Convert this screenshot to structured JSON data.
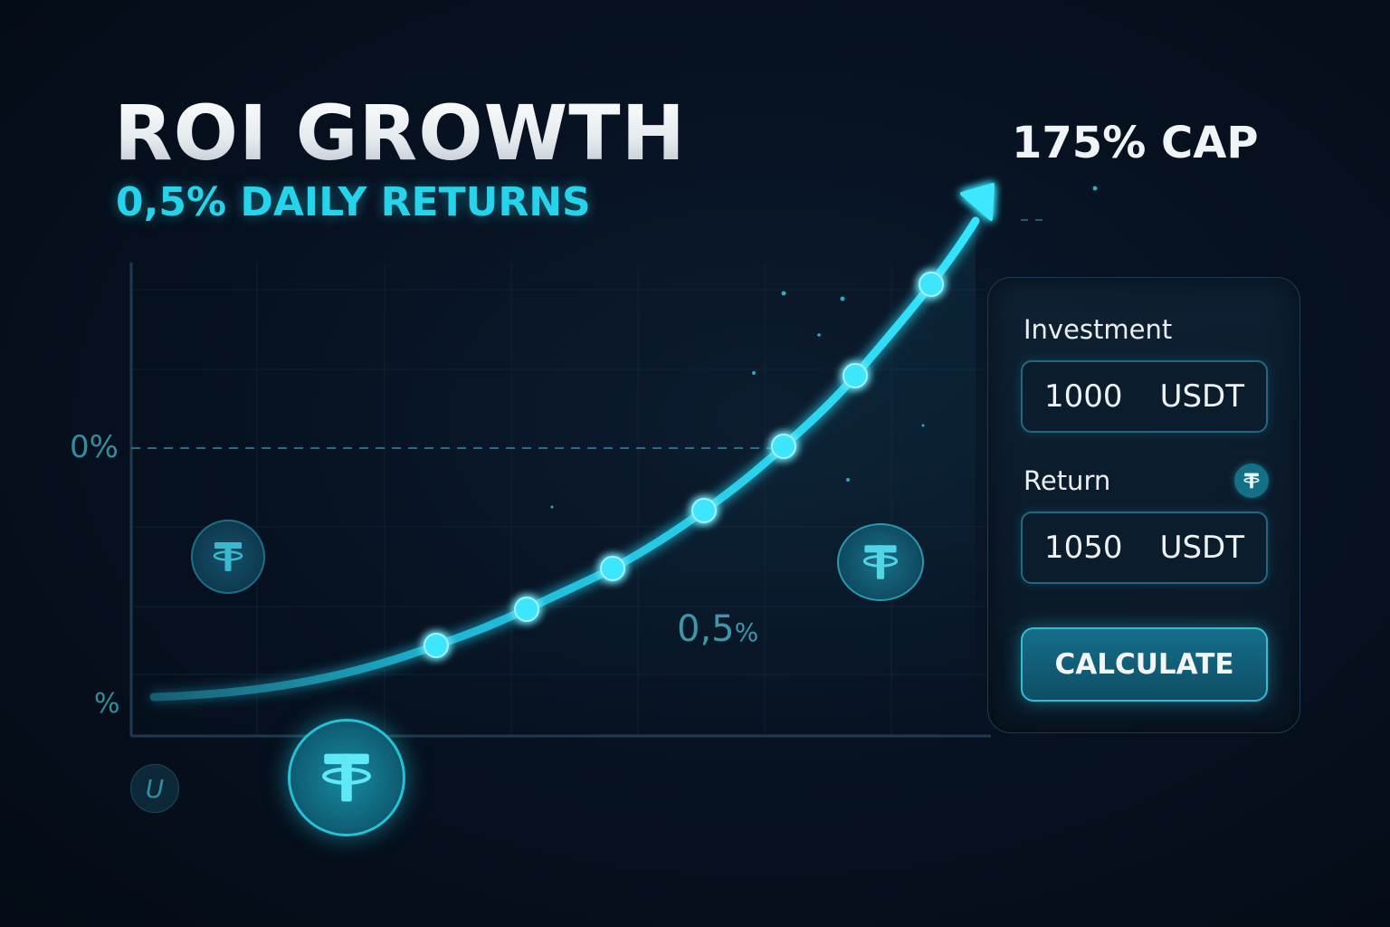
{
  "header": {
    "title": "ROI GROWTH",
    "subtitle": "0,5% DAILY RETURNS",
    "cap_label": "175% CAP"
  },
  "chart_data": {
    "type": "line",
    "title": "ROI GROWTH",
    "subtitle": "0,5% DAILY RETURNS",
    "y_tick_labels": [
      "0%",
      "%"
    ],
    "annotations": [
      "175% CAP",
      "0,5%"
    ],
    "markers": 7,
    "ends_with_arrow": true,
    "grid": true,
    "accent_color": "#22d8f0"
  },
  "labels": {
    "y_top": "0%",
    "y_bottom": "%",
    "mid_value": "0,5",
    "mid_unit": "%",
    "coin_u": "U"
  },
  "calculator": {
    "investment_label": "Investment",
    "investment_value": "1000",
    "investment_currency": "USDT",
    "return_label": "Return",
    "return_value": "1050",
    "return_currency": "USDT",
    "button_label": "CALCULATE"
  },
  "icons": {
    "coin": "tether-icon",
    "return": "tether-icon"
  },
  "colors": {
    "background": "#050d18",
    "accent": "#22d8f0",
    "subtitle": "#25d3ea",
    "panel_border": "#1c3b52",
    "button": "#166e89"
  }
}
